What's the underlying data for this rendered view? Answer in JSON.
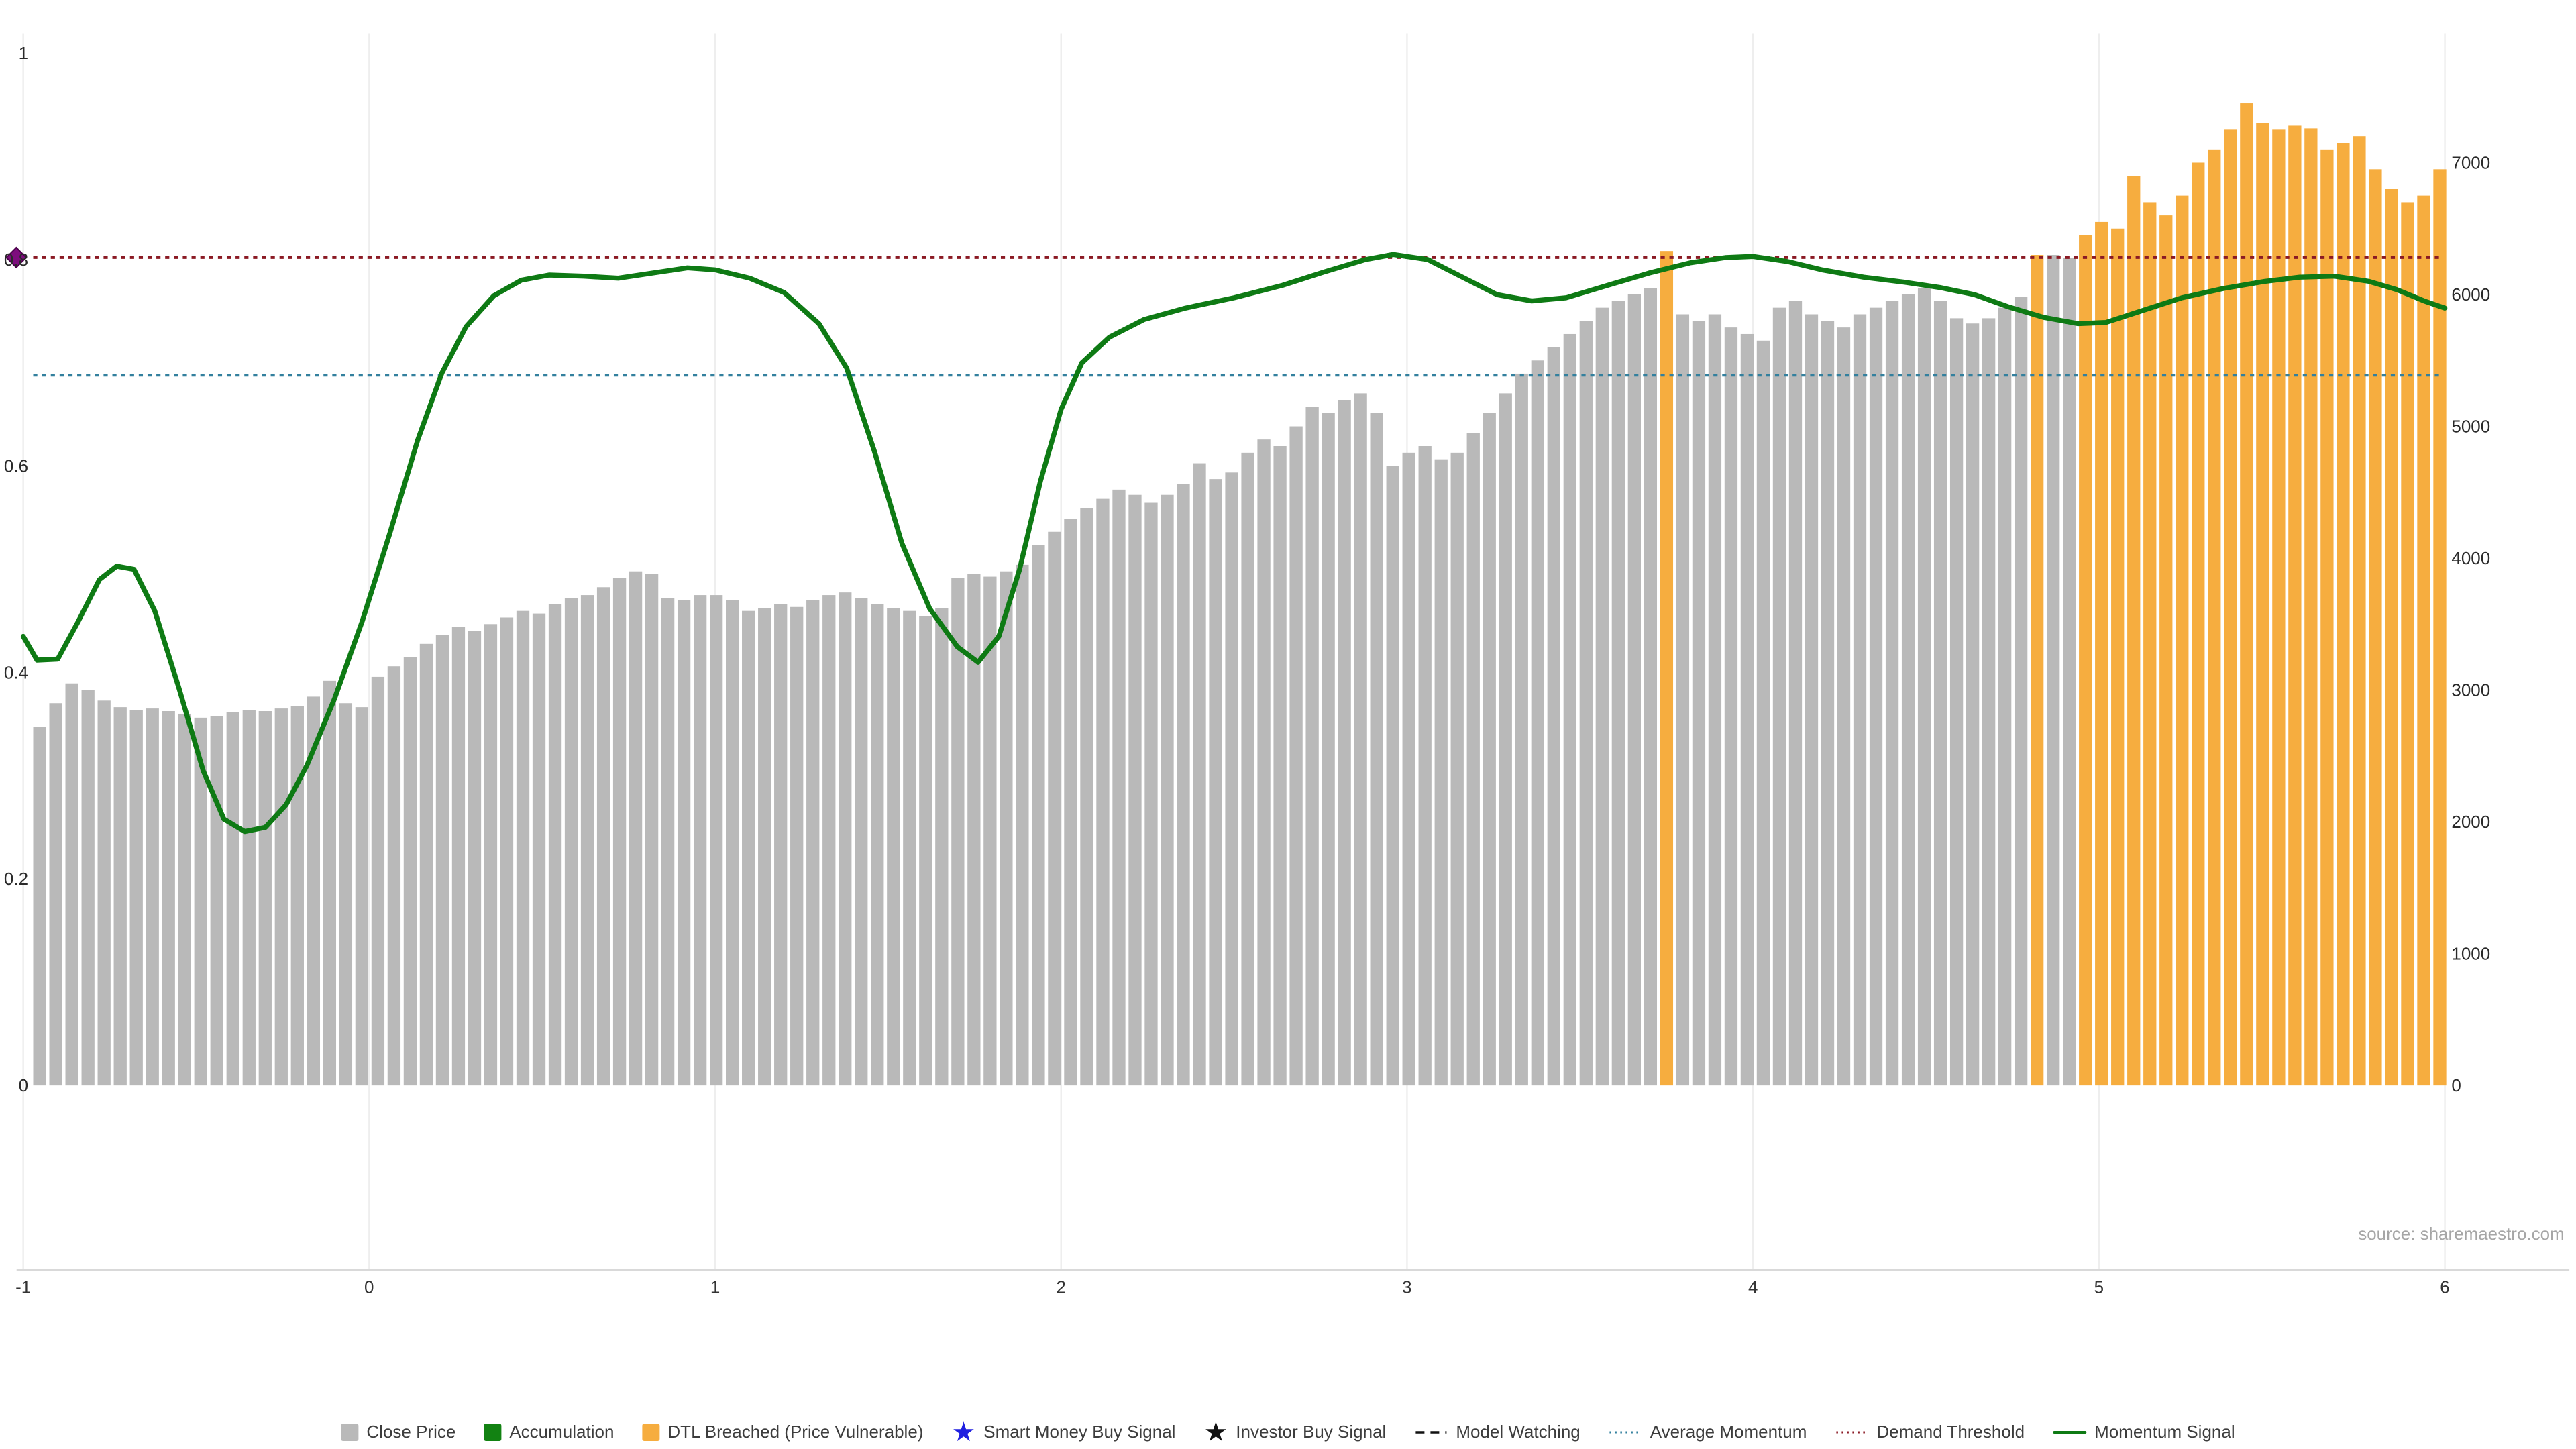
{
  "chart_data": {
    "type": "bar",
    "title": "",
    "source_note": "source: sharemaestro.com",
    "x_axis": {
      "ticks": [
        "-1",
        "0",
        "1",
        "2",
        "3",
        "4",
        "5",
        "6"
      ],
      "tick_values": [
        -1,
        0,
        1,
        2,
        3,
        4,
        5,
        6
      ],
      "min": -1,
      "max": 6
    },
    "left_axis": {
      "ticks": [
        "0",
        "0.2",
        "0.4",
        "0.6",
        "0.8",
        "1"
      ],
      "tick_values": [
        0,
        0.2,
        0.4,
        0.6,
        0.8,
        1
      ],
      "min": 0,
      "max": 1
    },
    "right_axis": {
      "ticks": [
        "0",
        "1000",
        "2000",
        "3000",
        "4000",
        "5000",
        "6000",
        "7000"
      ],
      "tick_values": [
        0,
        1000,
        2000,
        3000,
        4000,
        5000,
        6000,
        7000
      ],
      "min": 0,
      "max": 7000
    },
    "series": [
      {
        "name": "Close Price",
        "type": "bar",
        "color": "#b9b9b9",
        "values": [
          2720,
          2900,
          3050,
          3000,
          2920,
          2870,
          2850,
          2860,
          2840,
          2820,
          2790,
          2800,
          2830,
          2850,
          2840,
          2860,
          2880,
          2950,
          3070,
          2900,
          2870,
          3100,
          3180,
          3250,
          3350,
          3420,
          3480,
          3450,
          3500,
          3550,
          3600,
          3580,
          3650,
          3700,
          3720,
          3780,
          3850,
          3900,
          3880,
          3700,
          3680,
          3720,
          3720,
          3680,
          3600,
          3620,
          3650,
          3630,
          3680,
          3720,
          3740,
          3700,
          3650,
          3620,
          3600,
          3560,
          3620,
          3850,
          3880,
          3860,
          3900,
          3950,
          4100,
          4200,
          4300,
          4380,
          4450,
          4520,
          4480,
          4420,
          4480,
          4560,
          4720,
          4600,
          4650,
          4800,
          4900,
          4850,
          5000,
          5150,
          5100,
          5200,
          5250,
          5100,
          4700,
          4800,
          4850,
          4750,
          4800,
          4950,
          5100,
          5250,
          5400,
          5500,
          5600,
          5700,
          5800,
          5900,
          5950,
          6000,
          6050,
          6330,
          5850,
          5800,
          5850,
          5750,
          5700,
          5650,
          5900,
          5950,
          5850,
          5800,
          5750,
          5850,
          5900,
          5950,
          6000,
          6050,
          5950,
          5820,
          5780,
          5820,
          5900,
          5980,
          6300,
          6300,
          6280,
          6450,
          6550,
          6500,
          6900,
          6700,
          6600,
          6750,
          7000,
          7100,
          7250,
          7450,
          7300,
          7250,
          7280,
          7260,
          7100,
          7150,
          7200,
          6950,
          6800,
          6700,
          6750,
          6950
        ]
      },
      {
        "name": "DTL Breached (Price Vulnerable)",
        "type": "bar-highlight",
        "color": "#f6ad3f",
        "indices": [
          101,
          124,
          127,
          128,
          129,
          130,
          131,
          132,
          133,
          134,
          135,
          136,
          137,
          138,
          139,
          140,
          141,
          142,
          143,
          144,
          145,
          146,
          147,
          148,
          149
        ]
      },
      {
        "name": "Momentum Signal",
        "type": "line",
        "color": "#0e7a14",
        "points": [
          [
            -1.0,
            0.435
          ],
          [
            -0.96,
            0.412
          ],
          [
            -0.9,
            0.413
          ],
          [
            -0.84,
            0.45
          ],
          [
            -0.78,
            0.49
          ],
          [
            -0.73,
            0.503
          ],
          [
            -0.68,
            0.5
          ],
          [
            -0.62,
            0.46
          ],
          [
            -0.55,
            0.385
          ],
          [
            -0.48,
            0.305
          ],
          [
            -0.42,
            0.258
          ],
          [
            -0.36,
            0.246
          ],
          [
            -0.3,
            0.25
          ],
          [
            -0.24,
            0.272
          ],
          [
            -0.18,
            0.31
          ],
          [
            -0.1,
            0.375
          ],
          [
            -0.02,
            0.45
          ],
          [
            0.06,
            0.535
          ],
          [
            0.14,
            0.625
          ],
          [
            0.21,
            0.69
          ],
          [
            0.28,
            0.735
          ],
          [
            0.36,
            0.765
          ],
          [
            0.44,
            0.78
          ],
          [
            0.52,
            0.785
          ],
          [
            0.62,
            0.784
          ],
          [
            0.72,
            0.782
          ],
          [
            0.82,
            0.787
          ],
          [
            0.92,
            0.792
          ],
          [
            1.0,
            0.79
          ],
          [
            1.1,
            0.782
          ],
          [
            1.2,
            0.768
          ],
          [
            1.3,
            0.738
          ],
          [
            1.38,
            0.695
          ],
          [
            1.46,
            0.615
          ],
          [
            1.54,
            0.525
          ],
          [
            1.62,
            0.462
          ],
          [
            1.7,
            0.425
          ],
          [
            1.76,
            0.41
          ],
          [
            1.82,
            0.435
          ],
          [
            1.88,
            0.5
          ],
          [
            1.94,
            0.585
          ],
          [
            2.0,
            0.655
          ],
          [
            2.06,
            0.7
          ],
          [
            2.14,
            0.725
          ],
          [
            2.24,
            0.742
          ],
          [
            2.36,
            0.753
          ],
          [
            2.5,
            0.763
          ],
          [
            2.64,
            0.775
          ],
          [
            2.76,
            0.788
          ],
          [
            2.88,
            0.8
          ],
          [
            2.96,
            0.805
          ],
          [
            3.06,
            0.8
          ],
          [
            3.16,
            0.783
          ],
          [
            3.26,
            0.766
          ],
          [
            3.36,
            0.76
          ],
          [
            3.46,
            0.763
          ],
          [
            3.58,
            0.775
          ],
          [
            3.7,
            0.787
          ],
          [
            3.82,
            0.797
          ],
          [
            3.92,
            0.802
          ],
          [
            4.0,
            0.803
          ],
          [
            4.1,
            0.798
          ],
          [
            4.2,
            0.79
          ],
          [
            4.32,
            0.783
          ],
          [
            4.44,
            0.778
          ],
          [
            4.54,
            0.773
          ],
          [
            4.64,
            0.766
          ],
          [
            4.74,
            0.754
          ],
          [
            4.84,
            0.744
          ],
          [
            4.94,
            0.738
          ],
          [
            5.02,
            0.739
          ],
          [
            5.12,
            0.75
          ],
          [
            5.24,
            0.763
          ],
          [
            5.36,
            0.772
          ],
          [
            5.48,
            0.779
          ],
          [
            5.58,
            0.783
          ],
          [
            5.68,
            0.784
          ],
          [
            5.78,
            0.779
          ],
          [
            5.86,
            0.771
          ],
          [
            5.94,
            0.76
          ],
          [
            6.0,
            0.753
          ]
        ]
      },
      {
        "name": "Average Momentum",
        "type": "hline",
        "style": "dotted",
        "color": "#33809e",
        "value": 0.688
      },
      {
        "name": "Demand Threshold",
        "type": "hline",
        "style": "dotted",
        "color": "#8b1a24",
        "value": 0.802
      }
    ],
    "markers": [
      {
        "name": "demand-threshold-diamond",
        "shape": "diamond",
        "color": "#7d0d7d",
        "x": -1.02,
        "y": 0.802
      }
    ],
    "legend": [
      {
        "label": "Close Price",
        "marker": "square",
        "color": "#b9b9b9"
      },
      {
        "label": "Accumulation",
        "marker": "square",
        "color": "#128212"
      },
      {
        "label": "DTL Breached (Price Vulnerable)",
        "marker": "square",
        "color": "#f6ad3f"
      },
      {
        "label": "Smart Money Buy Signal",
        "marker": "star",
        "color": "#1f1fe0"
      },
      {
        "label": "Investor Buy Signal",
        "marker": "star",
        "color": "#111111"
      },
      {
        "label": "Model Watching",
        "marker": "dashed-line",
        "color": "#111111"
      },
      {
        "label": "Average Momentum",
        "marker": "dotted-line",
        "color": "#33809e"
      },
      {
        "label": "Demand Threshold",
        "marker": "dotted-line",
        "color": "#8b1a24"
      },
      {
        "label": "Momentum Signal",
        "marker": "solid-line",
        "color": "#0e7a14"
      }
    ]
  }
}
